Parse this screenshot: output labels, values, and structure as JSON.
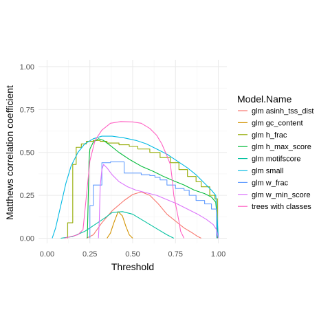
{
  "chart_data": {
    "type": "line",
    "xlabel": "Threshold",
    "ylabel": "Matthews correlation coefficient",
    "xlim": [
      0,
      1
    ],
    "ylim": [
      0,
      1
    ],
    "x_ticks": [
      "0.00",
      "0.25",
      "0.50",
      "0.75",
      "1.00"
    ],
    "y_ticks": [
      "0.00",
      "0.25",
      "0.50",
      "0.75",
      "1.00"
    ],
    "grid": true,
    "legend_title": "Model.Name",
    "legend_position": "right",
    "series": [
      {
        "name": "glm asinh_tss_dist",
        "color": "#F8766D",
        "step": false,
        "points": [
          [
            0.23,
            0
          ],
          [
            0.27,
            0.02
          ],
          [
            0.32,
            0.09
          ],
          [
            0.38,
            0.16
          ],
          [
            0.45,
            0.22
          ],
          [
            0.5,
            0.255
          ],
          [
            0.55,
            0.27
          ],
          [
            0.6,
            0.25
          ],
          [
            0.65,
            0.2
          ],
          [
            0.7,
            0.14
          ],
          [
            0.75,
            0.1
          ],
          [
            0.8,
            0.06
          ],
          [
            0.85,
            0.03
          ],
          [
            0.88,
            0.01
          ],
          [
            0.9,
            0
          ]
        ]
      },
      {
        "name": "glm gc_content",
        "color": "#D39200",
        "step": false,
        "points": [
          [
            0.35,
            0
          ],
          [
            0.37,
            0.03
          ],
          [
            0.39,
            0.09
          ],
          [
            0.415,
            0.155
          ],
          [
            0.44,
            0.13
          ],
          [
            0.46,
            0.07
          ],
          [
            0.48,
            0.02
          ],
          [
            0.5,
            0
          ]
        ]
      },
      {
        "name": "glm h_frac",
        "color": "#93AA00",
        "step": true,
        "points": [
          [
            0.12,
            0
          ],
          [
            0.12,
            0.09
          ],
          [
            0.15,
            0.09
          ],
          [
            0.15,
            0.43
          ],
          [
            0.17,
            0.43
          ],
          [
            0.17,
            0.53
          ],
          [
            0.2,
            0.53
          ],
          [
            0.2,
            0.55
          ],
          [
            0.23,
            0.55
          ],
          [
            0.23,
            0.565
          ],
          [
            0.27,
            0.565
          ],
          [
            0.27,
            0.57
          ],
          [
            0.31,
            0.57
          ],
          [
            0.31,
            0.565
          ],
          [
            0.35,
            0.565
          ],
          [
            0.35,
            0.555
          ],
          [
            0.42,
            0.555
          ],
          [
            0.42,
            0.545
          ],
          [
            0.48,
            0.545
          ],
          [
            0.48,
            0.535
          ],
          [
            0.53,
            0.535
          ],
          [
            0.53,
            0.52
          ],
          [
            0.6,
            0.52
          ],
          [
            0.6,
            0.5
          ],
          [
            0.66,
            0.5
          ],
          [
            0.66,
            0.47
          ],
          [
            0.72,
            0.47
          ],
          [
            0.72,
            0.44
          ],
          [
            0.77,
            0.44
          ],
          [
            0.77,
            0.4
          ],
          [
            0.82,
            0.4
          ],
          [
            0.82,
            0.36
          ],
          [
            0.87,
            0.36
          ],
          [
            0.87,
            0.33
          ],
          [
            0.9,
            0.33
          ],
          [
            0.9,
            0.3
          ],
          [
            0.95,
            0.3
          ],
          [
            0.95,
            0.25
          ],
          [
            0.98,
            0.25
          ],
          [
            0.98,
            0.23
          ],
          [
            0.995,
            0.23
          ],
          [
            0.995,
            0
          ]
        ]
      },
      {
        "name": "glm h_max_score",
        "color": "#00BA38",
        "step": false,
        "points": [
          [
            0.235,
            0
          ],
          [
            0.24,
            0.22
          ],
          [
            0.245,
            0.45
          ],
          [
            0.25,
            0.52
          ],
          [
            0.27,
            0.56
          ],
          [
            0.3,
            0.58
          ],
          [
            0.33,
            0.57
          ],
          [
            0.37,
            0.54
          ],
          [
            0.42,
            0.5
          ],
          [
            0.48,
            0.46
          ],
          [
            0.55,
            0.42
          ],
          [
            0.62,
            0.39
          ],
          [
            0.68,
            0.36
          ],
          [
            0.75,
            0.33
          ],
          [
            0.8,
            0.31
          ],
          [
            0.86,
            0.28
          ],
          [
            0.92,
            0.26
          ],
          [
            0.96,
            0.24
          ],
          [
            0.985,
            0.21
          ],
          [
            0.99,
            0.15
          ],
          [
            0.995,
            0
          ]
        ]
      },
      {
        "name": "glm motifscore",
        "color": "#00C19F",
        "step": false,
        "points": [
          [
            0.08,
            0
          ],
          [
            0.15,
            0.01
          ],
          [
            0.22,
            0.04
          ],
          [
            0.28,
            0.08
          ],
          [
            0.34,
            0.12
          ],
          [
            0.38,
            0.15
          ],
          [
            0.44,
            0.155
          ],
          [
            0.5,
            0.14
          ],
          [
            0.55,
            0.11
          ],
          [
            0.6,
            0.08
          ],
          [
            0.65,
            0.05
          ],
          [
            0.7,
            0.02
          ],
          [
            0.74,
            0
          ]
        ]
      },
      {
        "name": "glm small",
        "color": "#00B9E3",
        "step": false,
        "points": [
          [
            0.03,
            0
          ],
          [
            0.05,
            0.06
          ],
          [
            0.08,
            0.19
          ],
          [
            0.11,
            0.32
          ],
          [
            0.14,
            0.42
          ],
          [
            0.18,
            0.5
          ],
          [
            0.22,
            0.55
          ],
          [
            0.27,
            0.58
          ],
          [
            0.32,
            0.595
          ],
          [
            0.38,
            0.595
          ],
          [
            0.45,
            0.585
          ],
          [
            0.52,
            0.57
          ],
          [
            0.58,
            0.55
          ],
          [
            0.64,
            0.52
          ],
          [
            0.7,
            0.49
          ],
          [
            0.76,
            0.45
          ],
          [
            0.82,
            0.41
          ],
          [
            0.87,
            0.37
          ],
          [
            0.92,
            0.32
          ],
          [
            0.96,
            0.28
          ],
          [
            0.985,
            0.25
          ],
          [
            0.99,
            0.18
          ],
          [
            1.0,
            0
          ]
        ]
      },
      {
        "name": "glm w_frac",
        "color": "#619CFF",
        "step": true,
        "points": [
          [
            0.25,
            0
          ],
          [
            0.25,
            0.19
          ],
          [
            0.27,
            0.19
          ],
          [
            0.27,
            0.31
          ],
          [
            0.32,
            0.31
          ],
          [
            0.32,
            0.44
          ],
          [
            0.37,
            0.44
          ],
          [
            0.37,
            0.445
          ],
          [
            0.45,
            0.445
          ],
          [
            0.45,
            0.38
          ],
          [
            0.55,
            0.38
          ],
          [
            0.55,
            0.37
          ],
          [
            0.6,
            0.37
          ],
          [
            0.6,
            0.365
          ],
          [
            0.63,
            0.365
          ],
          [
            0.63,
            0.355
          ],
          [
            0.66,
            0.355
          ],
          [
            0.66,
            0.34
          ],
          [
            0.7,
            0.34
          ],
          [
            0.7,
            0.31
          ],
          [
            0.75,
            0.31
          ],
          [
            0.75,
            0.29
          ],
          [
            0.8,
            0.29
          ],
          [
            0.8,
            0.28
          ],
          [
            0.83,
            0.28
          ],
          [
            0.83,
            0.25
          ],
          [
            0.87,
            0.25
          ],
          [
            0.87,
            0.22
          ],
          [
            0.92,
            0.22
          ],
          [
            0.92,
            0.2
          ],
          [
            0.96,
            0.2
          ],
          [
            0.96,
            0.17
          ],
          [
            0.99,
            0.17
          ],
          [
            0.99,
            0
          ]
        ]
      },
      {
        "name": "glm w_min_score",
        "color": "#DB72FB",
        "step": false,
        "points": [
          [
            0.3,
            0
          ],
          [
            0.305,
            0.1
          ],
          [
            0.31,
            0.3
          ],
          [
            0.32,
            0.4
          ],
          [
            0.33,
            0.43
          ],
          [
            0.35,
            0.41
          ],
          [
            0.38,
            0.37
          ],
          [
            0.42,
            0.33
          ],
          [
            0.47,
            0.3
          ],
          [
            0.52,
            0.28
          ],
          [
            0.58,
            0.265
          ],
          [
            0.64,
            0.25
          ],
          [
            0.7,
            0.225
          ],
          [
            0.76,
            0.2
          ],
          [
            0.82,
            0.17
          ],
          [
            0.88,
            0.14
          ],
          [
            0.93,
            0.11
          ],
          [
            0.97,
            0.08
          ],
          [
            0.99,
            0.05
          ],
          [
            1.0,
            0
          ]
        ]
      },
      {
        "name": "trees with classes",
        "color": "#FF61C3",
        "step": false,
        "points": [
          [
            0.1,
            0
          ],
          [
            0.14,
            0.01
          ],
          [
            0.18,
            0.02
          ],
          [
            0.21,
            0.05
          ],
          [
            0.23,
            0.25
          ],
          [
            0.25,
            0.45
          ],
          [
            0.28,
            0.57
          ],
          [
            0.32,
            0.63
          ],
          [
            0.37,
            0.67
          ],
          [
            0.43,
            0.68
          ],
          [
            0.5,
            0.678
          ],
          [
            0.55,
            0.67
          ],
          [
            0.6,
            0.64
          ],
          [
            0.64,
            0.6
          ],
          [
            0.67,
            0.55
          ],
          [
            0.7,
            0.48
          ],
          [
            0.72,
            0.43
          ],
          [
            0.73,
            0.35
          ],
          [
            0.74,
            0.25
          ],
          [
            0.76,
            0.15
          ],
          [
            0.77,
            0.1
          ],
          [
            0.78,
            0.04
          ],
          [
            0.8,
            0
          ]
        ]
      }
    ]
  }
}
